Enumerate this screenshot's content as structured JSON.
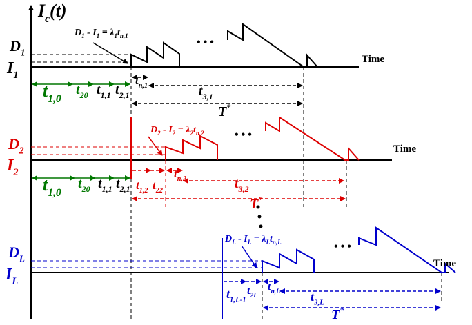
{
  "y_axis": {
    "base": "I",
    "sub": "c",
    "suffix": "(t)"
  },
  "panels": [
    {
      "peak": {
        "base": "D",
        "sub": "1"
      },
      "level": {
        "base": "I",
        "sub": "1"
      },
      "time": "Time",
      "ellipsis": "• • •",
      "equation": [
        {
          "base": "D",
          "sub": "1"
        },
        {
          "base": " - I",
          "sub": "1"
        },
        {
          "base": " = λ",
          "sub": "1"
        },
        {
          "base": "t",
          "sub": "n,1"
        }
      ],
      "durations": [
        {
          "base": "t",
          "sub": "1,0"
        },
        {
          "base": "t",
          "sub": "20"
        },
        {
          "base": "t",
          "sub": "1,1"
        },
        {
          "base": "t",
          "sub": "2,1"
        },
        {
          "base": "t",
          "sub": "n,1"
        },
        {
          "base": "t",
          "sub": "3,1"
        },
        {
          "base": "T",
          "sup": "*"
        }
      ]
    },
    {
      "peak": {
        "base": "D",
        "sub": "2"
      },
      "level": {
        "base": "I",
        "sub": "2"
      },
      "time": "Time",
      "ellipsis": "• • •",
      "equation": [
        {
          "base": "D",
          "sub": "2"
        },
        {
          "base": " - I",
          "sub": "2"
        },
        {
          "base": " = λ",
          "sub": "2"
        },
        {
          "base": "t",
          "sub": "n,2"
        }
      ],
      "durations": [
        {
          "base": "t",
          "sub": "1,0"
        },
        {
          "base": "t",
          "sub": "20"
        },
        {
          "base": "t",
          "sub": "1,1"
        },
        {
          "base": "t",
          "sub": "2,1"
        },
        {
          "base": "t",
          "sub": "1,2"
        },
        {
          "base": "t",
          "sub": "22"
        },
        {
          "base": "t",
          "sub": "n,2"
        },
        {
          "base": "t",
          "sub": "3,2"
        },
        {
          "base": "T",
          "sup": "*"
        }
      ]
    },
    {
      "peak": {
        "base": "D",
        "sub": "L"
      },
      "level": {
        "base": "I",
        "sub": "L"
      },
      "time": "Time",
      "ellipsis": "• • •",
      "equation": [
        {
          "base": "D",
          "sub": "L"
        },
        {
          "base": " - I",
          "sub": "L"
        },
        {
          "base": " = λ",
          "sub": "L"
        },
        {
          "base": "t",
          "sub": "n,L"
        }
      ],
      "durations": [
        {
          "base": "t",
          "sub": "1,L-1"
        },
        {
          "base": "t",
          "sub": "2L"
        },
        {
          "base": "t",
          "sub": "n,L"
        },
        {
          "base": "t",
          "sub": "3,L"
        },
        {
          "base": "T",
          "sup": "*"
        }
      ]
    }
  ]
}
